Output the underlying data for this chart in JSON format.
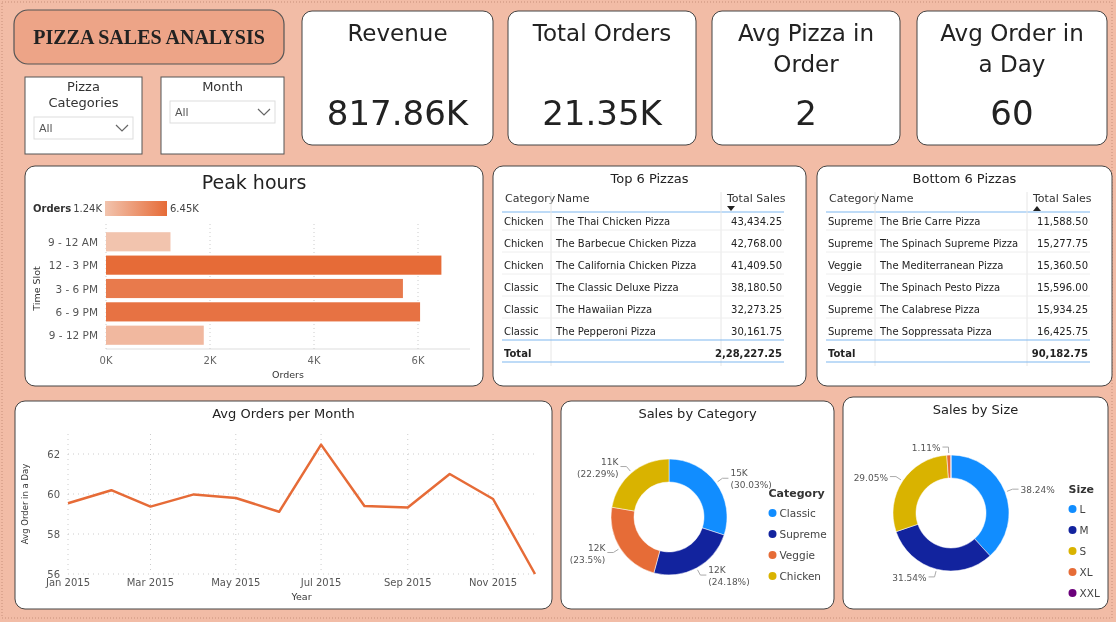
{
  "chart_data": [
    {
      "type": "other",
      "title": "PIZZA SALES ANALYSIS"
    },
    {
      "type": "other",
      "title": "Pizza Categories",
      "annotations": [
        "All"
      ]
    },
    {
      "type": "other",
      "title": "Month",
      "annotations": [
        "All"
      ]
    },
    {
      "type": "other",
      "title": "Revenue",
      "annotations": [
        "817.86K"
      ]
    },
    {
      "type": "other",
      "title": "Total Orders",
      "annotations": [
        "21.35K"
      ]
    },
    {
      "type": "other",
      "title": "Avg Pizza in Order",
      "annotations": [
        "2"
      ]
    },
    {
      "type": "other",
      "title": "Avg Order in a Day",
      "annotations": [
        "60"
      ]
    },
    {
      "type": "bar",
      "orientation": "horizontal",
      "title": "Peak hours",
      "categories": [
        "9 - 12 AM",
        "12 - 3 PM",
        "3 - 6 PM",
        "6 - 9 PM",
        "9 - 12 PM"
      ],
      "values": [
        1240,
        6450,
        5710,
        6040,
        1880
      ],
      "colors": [
        "#f2c4ae",
        "#e66b37",
        "#e87a4c",
        "#e77243",
        "#f1b89f"
      ],
      "xlim": [
        0,
        7000
      ],
      "xticks": [
        {
          "value": 0,
          "label": "0K"
        },
        {
          "value": 2000,
          "label": "2K"
        },
        {
          "value": 4000,
          "label": "4K"
        },
        {
          "value": 6000,
          "label": "6K"
        }
      ],
      "xlabel": "Orders",
      "ylabel": "Time Slot",
      "clabel": "Orders",
      "annotations": [
        "1.24K",
        "6.45K"
      ],
      "grid": "x"
    },
    {
      "type": "other",
      "title": "Top 6 Pizzas",
      "categories": [
        "Category",
        "Name",
        "Total Sales"
      ],
      "cell_labels": [
        [
          "Chicken",
          "The Thai Chicken Pizza",
          "43,434.25"
        ],
        [
          "Chicken",
          "The Barbecue Chicken Pizza",
          "42,768.00"
        ],
        [
          "Chicken",
          "The California Chicken Pizza",
          "41,409.50"
        ],
        [
          "Classic",
          "The Classic Deluxe Pizza",
          "38,180.50"
        ],
        [
          "Classic",
          "The Hawaiian Pizza",
          "32,273.25"
        ],
        [
          "Classic",
          "The Pepperoni Pizza",
          "30,161.75"
        ],
        [
          "Total",
          null,
          "2,28,227.25"
        ]
      ]
    },
    {
      "type": "other",
      "title": "Bottom 6 Pizzas",
      "categories": [
        "Category",
        "Name",
        "Total Sales"
      ],
      "cell_labels": [
        [
          "Supreme",
          "The Brie Carre Pizza",
          "11,588.50"
        ],
        [
          "Supreme",
          "The Spinach Supreme Pizza",
          "15,277.75"
        ],
        [
          "Veggie",
          "The Mediterranean Pizza",
          "15,360.50"
        ],
        [
          "Veggie",
          "The Spinach Pesto Pizza",
          "15,596.00"
        ],
        [
          "Supreme",
          "The Calabrese Pizza",
          "15,934.25"
        ],
        [
          "Supreme",
          "The Soppressata Pizza",
          "16,425.75"
        ],
        [
          "Total",
          null,
          "90,182.75"
        ]
      ]
    },
    {
      "type": "line",
      "title": "Avg Orders per Month",
      "x": [
        "2015-01",
        "2015-02",
        "2015-03",
        "2015-04",
        "2015-05",
        "2015-06",
        "2015-07",
        "2015-08",
        "2015-09",
        "2015-10",
        "2015-11",
        "2015-12"
      ],
      "series": [
        {
          "color": "#e66b37",
          "values": [
            59.54,
            60.19,
            59.37,
            59.98,
            59.8,
            59.11,
            62.47,
            59.4,
            59.33,
            61.0,
            59.75,
            56.0
          ]
        }
      ],
      "xlim": [
        "2015-01",
        "2015-12"
      ],
      "xticks": [
        {
          "value": "2015-01",
          "label": "Jan 2015"
        },
        {
          "value": "2015-03",
          "label": "Mar 2015"
        },
        {
          "value": "2015-05",
          "label": "May 2015"
        },
        {
          "value": "2015-07",
          "label": "Jul 2015"
        },
        {
          "value": "2015-09",
          "label": "Sep 2015"
        },
        {
          "value": "2015-11",
          "label": "Nov 2015"
        }
      ],
      "ylim": [
        56,
        63
      ],
      "yticks": [
        56,
        58,
        60,
        62
      ],
      "xlabel": "Year",
      "ylabel": "Avg Order in a Day",
      "grid": true,
      "line_style": "solid",
      "marker": "none"
    },
    {
      "type": "donut",
      "title": "Sales by Category",
      "legend_title": "Category",
      "legend": "right",
      "categories": [
        "Classic",
        "Supreme",
        "Veggie",
        "Chicken"
      ],
      "values": [
        30.03,
        24.18,
        23.5,
        22.29
      ],
      "colors": [
        "#118dff",
        "#12239e",
        "#e66c37",
        "#d9b300"
      ],
      "value_labels": [
        "15K (30.03%)",
        "12K (24.18%)",
        "12K (23.5%)",
        "11K (22.29%)"
      ]
    },
    {
      "type": "donut",
      "title": "Sales by Size",
      "legend_title": "Size",
      "legend": "right",
      "categories": [
        "L",
        "M",
        "S",
        "XL",
        "XXL"
      ],
      "values": [
        38.24,
        31.54,
        29.05,
        1.11,
        0.06
      ],
      "colors": [
        "#118dff",
        "#12239e",
        "#d9b300",
        "#e66c37",
        "#6b007b"
      ],
      "value_labels": [
        "38.24%",
        "31.54%",
        "29.05%",
        "1.11%",
        null
      ]
    }
  ]
}
